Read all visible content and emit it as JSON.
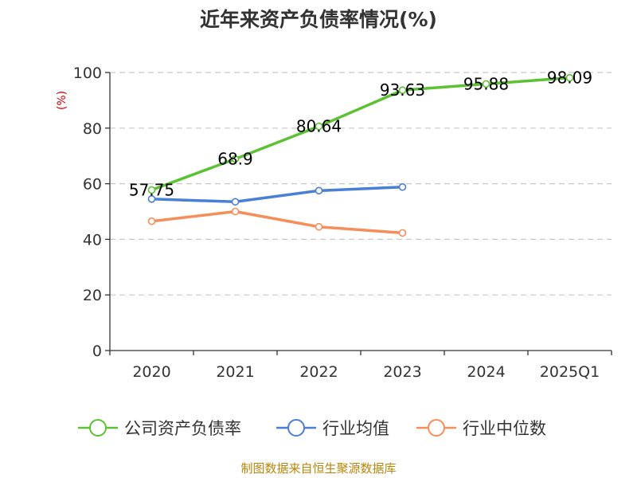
{
  "source": "制图数据来自恒生聚源数据库",
  "chart_data": {
    "type": "line",
    "title": "近年来资产负债率情况(%)",
    "ylabel": "(%)",
    "xlabel": "",
    "ylim": [
      0,
      100
    ],
    "yticks": [
      0,
      20,
      40,
      60,
      80,
      100
    ],
    "grid": true,
    "legend_position": "bottom",
    "categories": [
      "2020",
      "2021",
      "2022",
      "2023",
      "2024",
      "2025Q1"
    ],
    "series": [
      {
        "name": "公司资产负债率",
        "color": "#5cc234",
        "values": [
          57.75,
          68.9,
          80.64,
          93.63,
          95.88,
          98.09
        ],
        "labels": [
          "57.75",
          "68.9",
          "80.64",
          "93.63",
          "95.88",
          "98.09"
        ]
      },
      {
        "name": "行业均值",
        "color": "#4a7fd6",
        "values": [
          54.5,
          53.5,
          57.5,
          58.8,
          null,
          null
        ]
      },
      {
        "name": "行业中位数",
        "color": "#f58e5a",
        "values": [
          46.5,
          50.0,
          44.5,
          42.3,
          null,
          null
        ]
      }
    ]
  }
}
